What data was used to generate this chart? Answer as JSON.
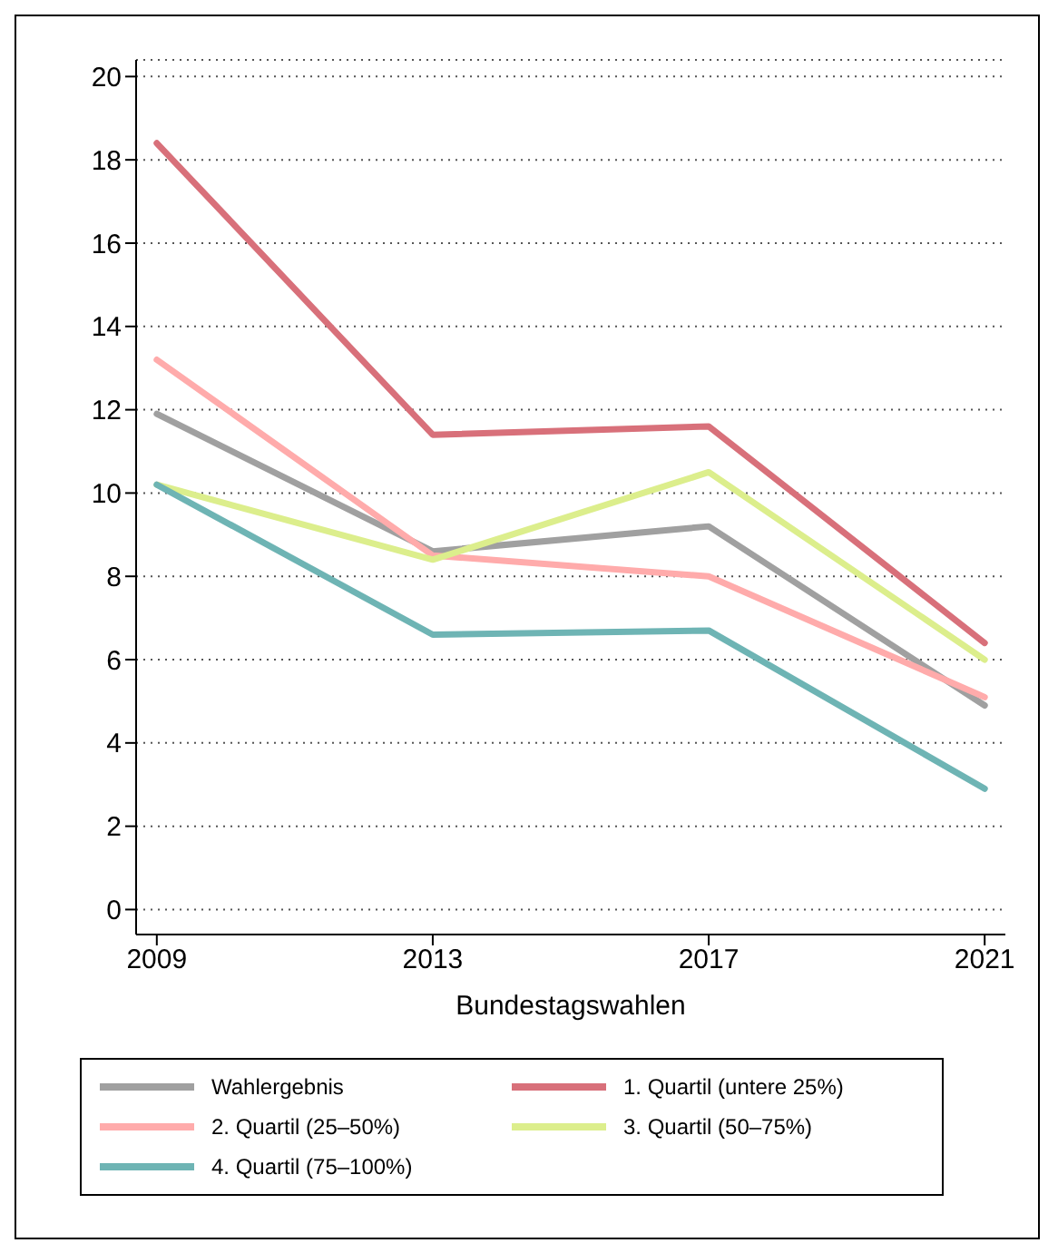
{
  "chart_data": {
    "type": "line",
    "xlabel": "Bundestagswahlen",
    "x": [
      2009,
      2013,
      2017,
      2021
    ],
    "xlim": [
      2008.7,
      2021.3
    ],
    "xticks": [
      2009,
      2013,
      2017,
      2021
    ],
    "ylim": [
      -0.6,
      20.4
    ],
    "yticks": [
      0,
      2,
      4,
      6,
      8,
      10,
      12,
      14,
      16,
      18,
      20
    ],
    "grid": "y",
    "legend": "bottom",
    "marker": "none",
    "line_style": "solid",
    "series": [
      {
        "name": "Wahlergebnis",
        "color": "#a0a0a0",
        "values": [
          11.9,
          8.6,
          9.2,
          4.9
        ]
      },
      {
        "name": "1. Quartil (untere 25%)",
        "color": "#d8707a",
        "values": [
          18.4,
          11.4,
          11.6,
          6.4
        ]
      },
      {
        "name": "2. Quartil (25–50%)",
        "color": "#ffabab",
        "values": [
          13.2,
          8.5,
          8.0,
          5.1
        ]
      },
      {
        "name": "3. Quartil (50–75%)",
        "color": "#dcee8c",
        "values": [
          10.2,
          8.4,
          10.5,
          6.0
        ]
      },
      {
        "name": "4. Quartil (75–100%)",
        "color": "#6eb4b4",
        "values": [
          10.2,
          6.6,
          6.7,
          2.9
        ]
      }
    ]
  }
}
